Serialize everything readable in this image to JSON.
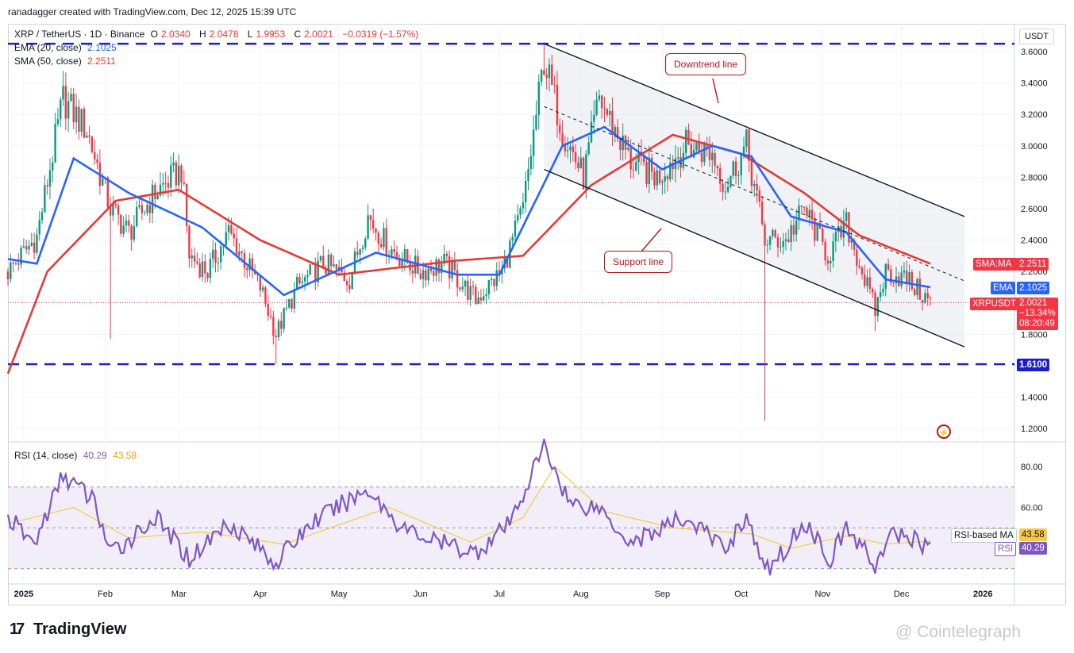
{
  "header": {
    "attribution": "ranadagger created with TradingView.com, Dec 12, 2025 15:39 UTC"
  },
  "legend": {
    "symbol": "XRP / TetherUS · 1D · Binance",
    "o_label": "O",
    "o_value": "2.0340",
    "h_label": "H",
    "h_value": "2.0478",
    "l_label": "L",
    "l_value": "1.9953",
    "c_label": "C",
    "c_value": "2.0021",
    "change": "−0.0319 (−1.57%)",
    "ema_label": "EMA (20, close)",
    "ema_value": "2.1025",
    "sma_label": "SMA (50, close)",
    "sma_value": "2.2511",
    "rsi_label": "RSI (14, close)",
    "rsi_value": "40.29",
    "rsi_ma_value": "43.58"
  },
  "price_axis": {
    "currency": "USDT",
    "ticks": [
      "3.6000",
      "3.4000",
      "3.2000",
      "3.0000",
      "2.8000",
      "2.6000",
      "2.4000",
      "2.2000",
      "2.0000",
      "1.8000",
      "1.6000",
      "1.4000",
      "1.2000"
    ]
  },
  "rsi_axis": {
    "ticks": [
      "80.00",
      "60.00"
    ]
  },
  "time_axis": {
    "labels": [
      "2025",
      "Feb",
      "Mar",
      "Apr",
      "May",
      "Jun",
      "Jul",
      "Aug",
      "Sep",
      "Oct",
      "Nov",
      "Dec",
      "2026"
    ]
  },
  "tags": {
    "sma_name": "SMA:MA",
    "sma_value": "2.2511",
    "ema_name": "EMA",
    "ema_value": "2.1025",
    "pair_name": "XRPUSDT",
    "pair_value": "2.0021",
    "pair_change": "−13.34%",
    "pair_countdown": "08:20:49",
    "level_value": "1.6100",
    "rsi_ma_name": "RSI-based MA",
    "rsi_ma_value": "43.58",
    "rsi_name": "RSI",
    "rsi_value": "40.29"
  },
  "annotations": {
    "downtrend": "Downtrend line",
    "support": "Support line"
  },
  "footer": {
    "brand": "TradingView",
    "watermark": "@ Cointelegraph"
  },
  "colors": {
    "up": "#089981",
    "down": "#f23645",
    "ema": "#2962ff",
    "sma": "#e53935",
    "rsi": "#7e57c2",
    "rsi_ma": "#f7c948",
    "level": "#1c1ccf",
    "channel": "#131722"
  },
  "chart_data": {
    "type": "candlestick",
    "title": "XRP / TetherUS · 1D · Binance",
    "x_range": [
      "2024-12-26",
      "2026-01-13"
    ],
    "y_range": [
      1.15,
      3.7
    ],
    "price_anchors": [
      {
        "date": "2024-12-26",
        "price": 2.2
      },
      {
        "date": "2025-01-06",
        "price": 2.42
      },
      {
        "date": "2025-01-16",
        "price": 3.3
      },
      {
        "date": "2025-01-25",
        "price": 3.1
      },
      {
        "date": "2025-02-03",
        "price": 2.6
      },
      {
        "date": "2025-02-10",
        "price": 2.45
      },
      {
        "date": "2025-02-20",
        "price": 2.7
      },
      {
        "date": "2025-03-02",
        "price": 2.85
      },
      {
        "date": "2025-03-05",
        "price": 2.3
      },
      {
        "date": "2025-03-12",
        "price": 2.2
      },
      {
        "date": "2025-03-20",
        "price": 2.45
      },
      {
        "date": "2025-04-01",
        "price": 2.1
      },
      {
        "date": "2025-04-07",
        "price": 1.8
      },
      {
        "date": "2025-04-15",
        "price": 2.1
      },
      {
        "date": "2025-04-25",
        "price": 2.25
      },
      {
        "date": "2025-05-05",
        "price": 2.15
      },
      {
        "date": "2025-05-12",
        "price": 2.55
      },
      {
        "date": "2025-05-20",
        "price": 2.35
      },
      {
        "date": "2025-06-01",
        "price": 2.2
      },
      {
        "date": "2025-06-10",
        "price": 2.25
      },
      {
        "date": "2025-06-22",
        "price": 2.02
      },
      {
        "date": "2025-07-02",
        "price": 2.2
      },
      {
        "date": "2025-07-10",
        "price": 2.6
      },
      {
        "date": "2025-07-18",
        "price": 3.55
      },
      {
        "date": "2025-07-25",
        "price": 3.1
      },
      {
        "date": "2025-08-02",
        "price": 2.8
      },
      {
        "date": "2025-08-08",
        "price": 3.3
      },
      {
        "date": "2025-08-20",
        "price": 2.9
      },
      {
        "date": "2025-08-30",
        "price": 2.8
      },
      {
        "date": "2025-09-10",
        "price": 3.0
      },
      {
        "date": "2025-09-20",
        "price": 2.95
      },
      {
        "date": "2025-09-25",
        "price": 2.75
      },
      {
        "date": "2025-10-03",
        "price": 3.0
      },
      {
        "date": "2025-10-10",
        "price": 2.4
      },
      {
        "date": "2025-10-18",
        "price": 2.4
      },
      {
        "date": "2025-10-25",
        "price": 2.6
      },
      {
        "date": "2025-11-03",
        "price": 2.3
      },
      {
        "date": "2025-11-10",
        "price": 2.5
      },
      {
        "date": "2025-11-21",
        "price": 1.95
      },
      {
        "date": "2025-11-25",
        "price": 2.2
      },
      {
        "date": "2025-12-03",
        "price": 2.15
      },
      {
        "date": "2025-12-12",
        "price": 2.0
      }
    ],
    "ema20_anchors": [
      {
        "date": "2024-12-26",
        "price": 2.28
      },
      {
        "date": "2025-01-06",
        "price": 2.25
      },
      {
        "date": "2025-01-20",
        "price": 2.92
      },
      {
        "date": "2025-02-10",
        "price": 2.7
      },
      {
        "date": "2025-03-10",
        "price": 2.48
      },
      {
        "date": "2025-04-10",
        "price": 2.05
      },
      {
        "date": "2025-05-15",
        "price": 2.32
      },
      {
        "date": "2025-06-15",
        "price": 2.18
      },
      {
        "date": "2025-07-01",
        "price": 2.18
      },
      {
        "date": "2025-07-25",
        "price": 3.0
      },
      {
        "date": "2025-08-10",
        "price": 3.12
      },
      {
        "date": "2025-09-01",
        "price": 2.85
      },
      {
        "date": "2025-09-20",
        "price": 3.0
      },
      {
        "date": "2025-10-05",
        "price": 2.93
      },
      {
        "date": "2025-10-20",
        "price": 2.55
      },
      {
        "date": "2025-11-10",
        "price": 2.45
      },
      {
        "date": "2025-11-25",
        "price": 2.15
      },
      {
        "date": "2025-12-12",
        "price": 2.1
      }
    ],
    "sma50_anchors": [
      {
        "date": "2024-12-26",
        "price": 1.55
      },
      {
        "date": "2025-01-10",
        "price": 2.2
      },
      {
        "date": "2025-02-05",
        "price": 2.65
      },
      {
        "date": "2025-03-01",
        "price": 2.72
      },
      {
        "date": "2025-04-01",
        "price": 2.4
      },
      {
        "date": "2025-05-01",
        "price": 2.18
      },
      {
        "date": "2025-06-15",
        "price": 2.27
      },
      {
        "date": "2025-07-10",
        "price": 2.3
      },
      {
        "date": "2025-08-05",
        "price": 2.75
      },
      {
        "date": "2025-09-05",
        "price": 3.07
      },
      {
        "date": "2025-10-01",
        "price": 2.95
      },
      {
        "date": "2025-10-25",
        "price": 2.7
      },
      {
        "date": "2025-11-15",
        "price": 2.43
      },
      {
        "date": "2025-12-12",
        "price": 2.25
      }
    ],
    "wicks": [
      {
        "date": "2025-02-03",
        "low": 1.77
      },
      {
        "date": "2025-04-07",
        "low": 1.61
      },
      {
        "date": "2025-10-10",
        "low": 1.25
      },
      {
        "date": "2025-07-18",
        "high": 3.66
      },
      {
        "date": "2025-11-21",
        "low": 1.82
      }
    ],
    "horizontal_levels": [
      3.65,
      1.61
    ],
    "current_price_line": 2.0021,
    "channel": {
      "upper": [
        {
          "date": "2025-07-18",
          "price": 3.65
        },
        {
          "date": "2025-12-25",
          "price": 2.55
        }
      ],
      "lower": [
        {
          "date": "2025-07-18",
          "price": 2.85
        },
        {
          "date": "2025-12-25",
          "price": 1.72
        }
      ],
      "mid": [
        {
          "date": "2025-07-18",
          "price": 3.25
        },
        {
          "date": "2025-12-25",
          "price": 2.14
        }
      ]
    },
    "rsi_range": [
      25,
      95
    ],
    "rsi_bands": [
      70,
      50,
      30
    ],
    "rsi_anchors": [
      {
        "date": "2024-12-26",
        "value": 55
      },
      {
        "date": "2025-01-05",
        "value": 42
      },
      {
        "date": "2025-01-16",
        "value": 76
      },
      {
        "date": "2025-01-28",
        "value": 63
      },
      {
        "date": "2025-02-03",
        "value": 37
      },
      {
        "date": "2025-02-20",
        "value": 55
      },
      {
        "date": "2025-03-05",
        "value": 35
      },
      {
        "date": "2025-03-20",
        "value": 53
      },
      {
        "date": "2025-04-07",
        "value": 33
      },
      {
        "date": "2025-04-20",
        "value": 52
      },
      {
        "date": "2025-05-12",
        "value": 69
      },
      {
        "date": "2025-05-25",
        "value": 50
      },
      {
        "date": "2025-06-05",
        "value": 44
      },
      {
        "date": "2025-06-22",
        "value": 38
      },
      {
        "date": "2025-07-05",
        "value": 52
      },
      {
        "date": "2025-07-18",
        "value": 90
      },
      {
        "date": "2025-07-28",
        "value": 62
      },
      {
        "date": "2025-08-08",
        "value": 60
      },
      {
        "date": "2025-08-20",
        "value": 43
      },
      {
        "date": "2025-09-10",
        "value": 55
      },
      {
        "date": "2025-09-25",
        "value": 40
      },
      {
        "date": "2025-10-03",
        "value": 56
      },
      {
        "date": "2025-10-10",
        "value": 28
      },
      {
        "date": "2025-10-18",
        "value": 40
      },
      {
        "date": "2025-10-25",
        "value": 53
      },
      {
        "date": "2025-11-04",
        "value": 35
      },
      {
        "date": "2025-11-10",
        "value": 50
      },
      {
        "date": "2025-11-21",
        "value": 32
      },
      {
        "date": "2025-11-28",
        "value": 47
      },
      {
        "date": "2025-12-05",
        "value": 45
      },
      {
        "date": "2025-12-12",
        "value": 40.29
      }
    ],
    "rsi_ma_anchors": [
      {
        "date": "2024-12-26",
        "value": 52
      },
      {
        "date": "2025-01-20",
        "value": 60
      },
      {
        "date": "2025-02-10",
        "value": 45
      },
      {
        "date": "2025-03-10",
        "value": 48
      },
      {
        "date": "2025-04-10",
        "value": 42
      },
      {
        "date": "2025-05-20",
        "value": 60
      },
      {
        "date": "2025-06-20",
        "value": 43
      },
      {
        "date": "2025-07-10",
        "value": 55
      },
      {
        "date": "2025-07-22",
        "value": 80
      },
      {
        "date": "2025-08-10",
        "value": 58
      },
      {
        "date": "2025-09-05",
        "value": 50
      },
      {
        "date": "2025-10-05",
        "value": 47
      },
      {
        "date": "2025-10-20",
        "value": 40
      },
      {
        "date": "2025-11-10",
        "value": 46
      },
      {
        "date": "2025-11-25",
        "value": 42
      },
      {
        "date": "2025-12-12",
        "value": 43.58
      }
    ]
  }
}
